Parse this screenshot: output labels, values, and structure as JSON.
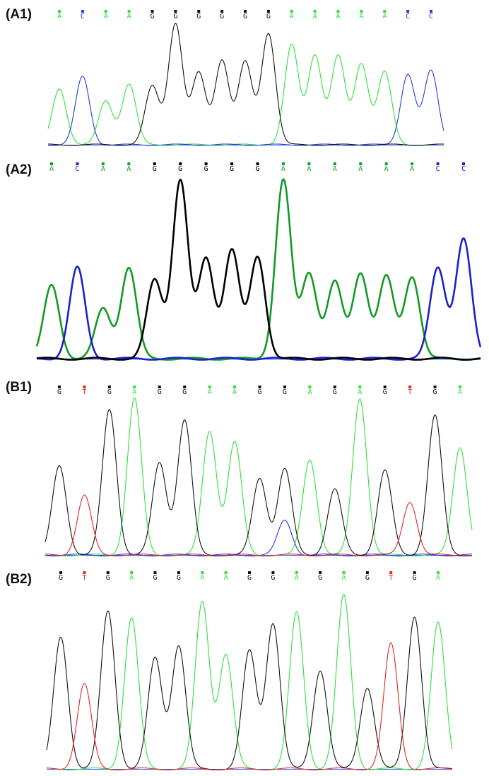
{
  "colors": {
    "A": "#2fe03a",
    "C": "#1f3be0",
    "G": "#111111",
    "T": "#e0261f",
    "baseline": "#4060ff"
  },
  "colors_bold": {
    "A": "#119a25",
    "C": "#1a22c8",
    "G": "#000000",
    "T": "#d01010"
  },
  "panels": [
    {
      "id": "A1",
      "label": "(A1)",
      "bases": [
        "A",
        "C",
        "A",
        "A",
        "G",
        "G",
        "G",
        "G",
        "G",
        "G",
        "A",
        "A",
        "A",
        "A",
        "A",
        "C",
        "C"
      ],
      "peak_heights": [
        0.46,
        0.56,
        0.36,
        0.5,
        0.48,
        1.0,
        0.59,
        0.7,
        0.68,
        0.5,
        0.82,
        0.74,
        0.73,
        0.67,
        0.6,
        0.58,
        0.61
      ],
      "secondary_peaks": [
        {
          "base_index": 9,
          "base": "G",
          "height": 0.42
        }
      ],
      "bold": false
    },
    {
      "id": "A2",
      "label": "(A2)",
      "bases": [
        "A",
        "C",
        "A",
        "A",
        "G",
        "G",
        "G",
        "G",
        "G",
        "A",
        "A",
        "A",
        "A",
        "A",
        "A",
        "C",
        "C"
      ],
      "peak_heights": [
        0.41,
        0.51,
        0.28,
        0.51,
        0.44,
        1.0,
        0.56,
        0.61,
        0.57,
        1.0,
        0.48,
        0.43,
        0.48,
        0.46,
        0.46,
        0.51,
        0.67
      ],
      "secondary_peaks": [],
      "bold": true
    },
    {
      "id": "B1",
      "label": "(B1)",
      "bases": [
        "G",
        "T",
        "G",
        "A",
        "G",
        "G",
        "A",
        "A",
        "G",
        "G",
        "A",
        "G",
        "A",
        "G",
        "T",
        "G",
        "A"
      ],
      "peak_heights": [
        0.57,
        0.38,
        0.93,
        1.0,
        0.59,
        0.86,
        0.79,
        0.72,
        0.49,
        0.55,
        0.61,
        0.42,
        1.0,
        0.54,
        0.34,
        0.89,
        0.69
      ],
      "secondary_peaks": [
        {
          "base_index": 9,
          "base": "C",
          "height": 0.22
        }
      ],
      "bold": false
    },
    {
      "id": "B2",
      "label": "(B2)",
      "bases": [
        "G",
        "T",
        "G",
        "A",
        "G",
        "G",
        "A",
        "A",
        "G",
        "G",
        "A",
        "G",
        "A",
        "G",
        "T",
        "G",
        "A"
      ],
      "peak_heights": [
        0.76,
        0.49,
        0.91,
        0.87,
        0.64,
        0.71,
        0.96,
        0.66,
        0.68,
        0.84,
        0.9,
        0.57,
        1.0,
        0.47,
        0.72,
        0.88,
        0.84
      ],
      "secondary_peaks": [],
      "bold": false
    }
  ]
}
